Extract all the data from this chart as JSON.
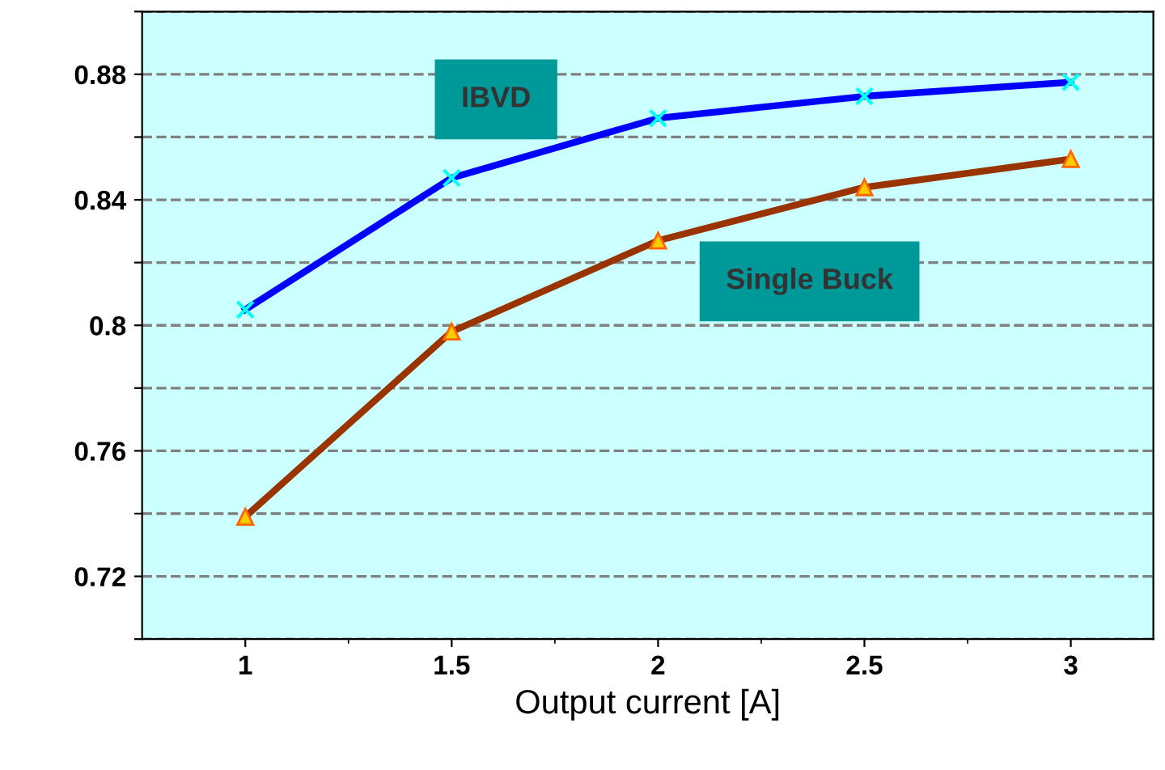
{
  "chart_data": {
    "type": "line",
    "xlabel": "Output current [A]",
    "x": [
      1,
      1.5,
      2,
      2.5,
      3
    ],
    "series": [
      {
        "name": "IBVD",
        "color": "#0000ff",
        "marker": "cross",
        "values": [
          0.805,
          0.847,
          0.866,
          0.873,
          0.8775
        ]
      },
      {
        "name": "Single Buck",
        "color": "#993300",
        "marker": "triangle",
        "values": [
          0.739,
          0.798,
          0.827,
          0.844,
          0.853
        ]
      }
    ],
    "xlim": [
      0.75,
      3.2
    ],
    "xticks": [
      1,
      1.5,
      2,
      2.5,
      3
    ],
    "ylim": [
      0.7,
      0.9
    ],
    "yticks": [
      {
        "value": 0.7,
        "label": null
      },
      0.72,
      {
        "value": 0.74,
        "label": null
      },
      0.76,
      {
        "value": 0.78,
        "label": null
      },
      0.8,
      {
        "value": 0.82,
        "label": null
      },
      0.84,
      {
        "value": 0.86,
        "label": null
      },
      0.88,
      {
        "value": 0.9,
        "label": null
      }
    ],
    "grid": "y",
    "line_style": "solid",
    "legend": false
  }
}
